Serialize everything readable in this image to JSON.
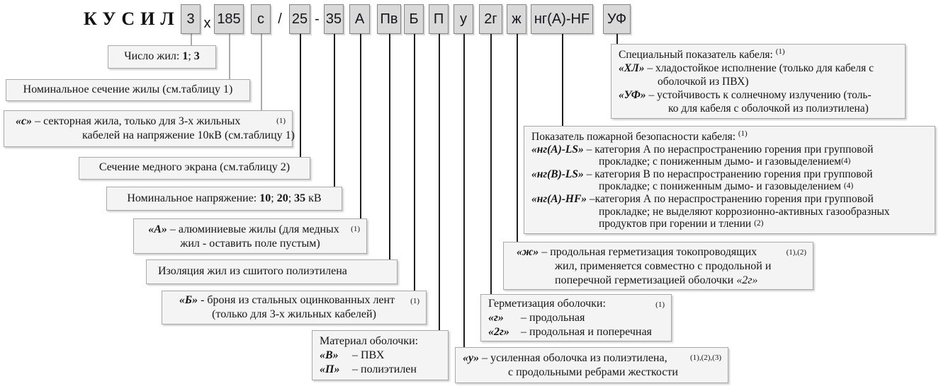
{
  "brand": "КУСИЛ",
  "code": [
    {
      "label": "3"
    },
    {
      "label": "х"
    },
    {
      "label": "185"
    },
    {
      "label": "с"
    },
    {
      "label": "/"
    },
    {
      "label": "25"
    },
    {
      "label": "-"
    },
    {
      "label": "35"
    },
    {
      "label": "А"
    },
    {
      "label": "Пв"
    },
    {
      "label": "Б"
    },
    {
      "label": "П"
    },
    {
      "label": "у"
    },
    {
      "label": "2г"
    },
    {
      "label": "ж"
    },
    {
      "label": "нг(А)-HF"
    },
    {
      "label": "УФ"
    }
  ],
  "legend": {
    "cores_count": {
      "l1": [
        {
          "t": "Число жил: "
        },
        {
          "t": "1",
          "s": "b"
        },
        {
          "t": "; "
        },
        {
          "t": "3",
          "s": "b"
        }
      ]
    },
    "nominal_section": {
      "l1": [
        {
          "t": "Номинальное сечение жилы (см.таблицу 1)"
        }
      ]
    },
    "sector_core": {
      "sup": "(1)",
      "l1": [
        {
          "t": "«с»",
          "s": "bi"
        },
        {
          "t": " – секторная жила, только для 3-х жильных"
        }
      ],
      "l2": [
        {
          "t": "кабелей на напряжение 10кВ (см.таблицу 1)"
        }
      ]
    },
    "screen_section": {
      "l1": [
        {
          "t": "Сечение медного экрана (см.таблицу 2)"
        }
      ]
    },
    "nominal_voltage": {
      "l1": [
        {
          "t": "Номинальное напряжение: "
        },
        {
          "t": "10",
          "s": "b"
        },
        {
          "t": "; "
        },
        {
          "t": "20",
          "s": "b"
        },
        {
          "t": "; "
        },
        {
          "t": "35",
          "s": "b"
        },
        {
          "t": " кВ"
        }
      ]
    },
    "aluminum_cores": {
      "sup": "(1)",
      "l1": [
        {
          "t": "«А»",
          "s": "bi"
        },
        {
          "t": " – алюминиевые жилы (для медных"
        }
      ],
      "l2": [
        {
          "t": "жил - оставить поле пустым)"
        }
      ]
    },
    "insulation": {
      "l1": [
        {
          "t": "Изоляция жил из сшитого полиэтилена"
        }
      ]
    },
    "armor": {
      "sup": "(1)",
      "l1": [
        {
          "t": "«Б»",
          "s": "bi"
        },
        {
          "t": " - броня из стальных оцинкованных лент"
        }
      ],
      "l2": [
        {
          "t": "(только для 3-х жильных кабелей)"
        }
      ]
    },
    "sheath_material": {
      "l1": [
        {
          "t": "Материал оболочки:"
        }
      ],
      "l2": [
        {
          "t": "«В»",
          "s": "term"
        },
        {
          "t": "– ПВХ"
        }
      ],
      "l3": [
        {
          "t": "«П»",
          "s": "term"
        },
        {
          "t": "– полиэтилен"
        }
      ]
    },
    "reinforced_sheath": {
      "sup": "(1),(2),(3)",
      "l1": [
        {
          "t": "«у»",
          "s": "bi"
        },
        {
          "t": " – усиленная оболочка из полиэтилена,"
        }
      ],
      "l2": [
        {
          "t": "с продольными ребрами жесткости"
        }
      ]
    },
    "sheath_sealing": {
      "sup": "(1)",
      "l1": [
        {
          "t": "Герметизация оболочки:"
        }
      ],
      "l2": [
        {
          "t": "«г»",
          "s": "term"
        },
        {
          "t": "– продольная"
        }
      ],
      "l3": [
        {
          "t": "«2г»",
          "s": "term"
        },
        {
          "t": "– продольная и поперечная"
        }
      ]
    },
    "cores_sealing": {
      "sup": "(1),(2)",
      "l1": [
        {
          "t": "«ж»",
          "s": "bi"
        },
        {
          "t": " – продольная герметизация токопроводящих"
        }
      ],
      "l2": [
        {
          "t": "жил, применяется совместно с продольной и"
        }
      ],
      "l3": [
        {
          "t": "поперечной герметизацией оболочки "
        },
        {
          "t": "«2г»",
          "s": "i"
        }
      ]
    },
    "fire_safety": {
      "title": [
        {
          "t": "Показатель пожарной безопасности кабеля: "
        },
        {
          "t": "(1)",
          "s": "sup"
        }
      ],
      "l1": [
        {
          "t": "«нг(А)-LS»",
          "s": "bi"
        },
        {
          "t": " – категория А по нераспространению горения при групповой"
        }
      ],
      "l2": [
        {
          "t": "прокладке; с пониженным дымо- и газовыделением"
        },
        {
          "t": "(4)",
          "s": "sm"
        }
      ],
      "l3": [
        {
          "t": "«нг(В)-LS»",
          "s": "bi"
        },
        {
          "t": " – категория В по нераспространению горения при групповой"
        }
      ],
      "l4": [
        {
          "t": "прокладке; с пониженным дымо- и газовыделением "
        },
        {
          "t": "(4)",
          "s": "sm"
        }
      ],
      "l5": [
        {
          "t": "«нг(А)-HF»",
          "s": "bi"
        },
        {
          "t": " –категория А по нераспространению горения при групповой"
        }
      ],
      "l6": [
        {
          "t": "прокладке; не выделяют коррозионно-активных газообразных"
        }
      ],
      "l7": [
        {
          "t": "продуктов при горении и тлении "
        },
        {
          "t": "(2)",
          "s": "sm"
        }
      ]
    },
    "special_index": {
      "title": [
        {
          "t": "Специальный показатель кабеля: "
        },
        {
          "t": "(1)",
          "s": "sup"
        }
      ],
      "l1": [
        {
          "t": "«ХЛ»",
          "s": "bi"
        },
        {
          "t": " – хладостойкое исполнение (только для кабеля с"
        }
      ],
      "l2": [
        {
          "t": "оболочкой из ПВХ)"
        }
      ],
      "l3": [
        {
          "t": "«УФ»",
          "s": "bi"
        },
        {
          "t": " – устойчивость к солнечному излучению (толь-"
        }
      ],
      "l4": [
        {
          "t": "ко для кабеля с оболочкой из полиэтилена)"
        }
      ]
    }
  }
}
